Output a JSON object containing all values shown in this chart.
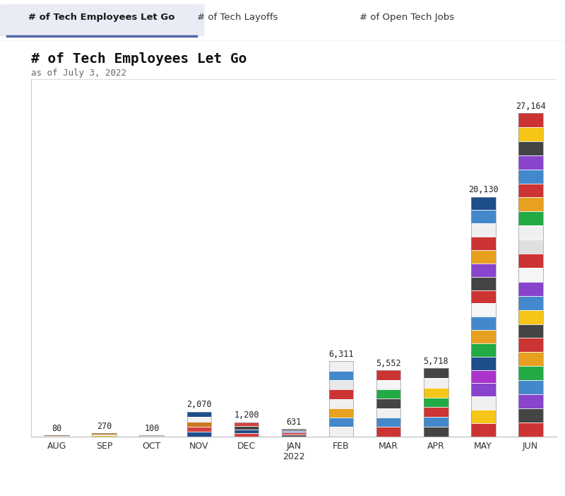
{
  "categories": [
    "AUG",
    "SEP",
    "OCT",
    "NOV",
    "DEC",
    "JAN\n2022",
    "FEB",
    "MAR",
    "APR",
    "MAY",
    "JUN"
  ],
  "values": [
    80,
    270,
    100,
    2070,
    1200,
    631,
    6311,
    5552,
    5718,
    20130,
    27164
  ],
  "labels": [
    "80",
    "270",
    "100",
    "2,070",
    "1,200",
    "631",
    "6,311",
    "5,552",
    "5,718",
    "20,130",
    "27,164"
  ],
  "title": "# of Tech Employees Let Go",
  "subtitle": "as of July 3, 2022",
  "tab_labels": [
    "# of Tech Employees Let Go",
    "# of Tech Layoffs",
    "# of Open Tech Jobs"
  ],
  "background_color": "#ffffff",
  "tab_bg_active": "#eaecf5",
  "tab_border_active": "#5566aa",
  "title_color": "#111111",
  "subtitle_color": "#666666",
  "ylim": [
    0,
    30000
  ],
  "logo_palettes": [
    [
      "#c87820",
      "#8b1a1a"
    ],
    [
      "#f5c518",
      "#1e4d8c",
      "#c87820"
    ],
    [
      "#1e4d8c",
      "#a8c4e0"
    ],
    [
      "#1e4d8c",
      "#d44040",
      "#c87820",
      "#f0f0f0",
      "#1e4d8c"
    ],
    [
      "#d44040",
      "#1e4d8c",
      "#444444",
      "#d44040"
    ],
    [
      "#555555",
      "#d44040",
      "#4488cc",
      "#888888"
    ],
    [
      "#f0f0f0",
      "#4488cc",
      "#e8a020",
      "#f0f0f0",
      "#cc3333",
      "#e8e8e8",
      "#4488cc",
      "#f0f0f0"
    ],
    [
      "#cc3333",
      "#4488cc",
      "#f0f0f0",
      "#444444",
      "#22aa44",
      "#f5f5f5",
      "#cc3333"
    ],
    [
      "#444444",
      "#4488cc",
      "#cc3333",
      "#22aa44",
      "#f5c518",
      "#f0f0f0",
      "#444444"
    ],
    [
      "#cc3333",
      "#f5c518",
      "#f0f0f0",
      "#8844cc",
      "#aa33cc",
      "#1e4d8c",
      "#22aa44",
      "#e8a020",
      "#4488cc",
      "#f5f5f5",
      "#cc3333",
      "#444444",
      "#8844cc",
      "#e8a020",
      "#cc3333",
      "#f0f0f0",
      "#4488cc",
      "#1e4d8c"
    ],
    [
      "#cc3333",
      "#444444",
      "#8844cc",
      "#4488cc",
      "#22aa44",
      "#e8a020",
      "#cc3333",
      "#444444",
      "#f5c518",
      "#4488cc",
      "#8844cc",
      "#f5f5f5",
      "#cc3333",
      "#e0e0e0",
      "#f0f0f0",
      "#22aa44",
      "#e8a020",
      "#cc3333",
      "#4488cc",
      "#8844cc",
      "#444444",
      "#f5c518",
      "#cc3333"
    ]
  ]
}
